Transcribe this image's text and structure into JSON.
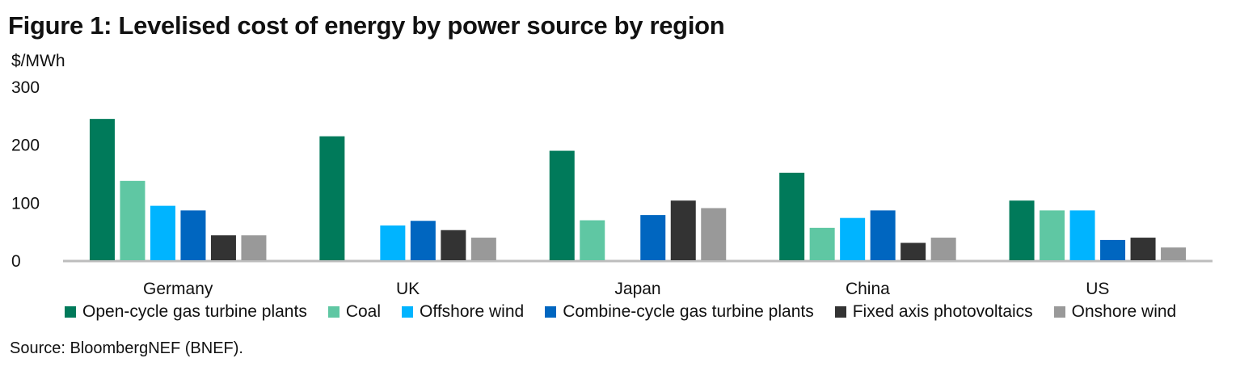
{
  "title": "Figure 1: Levelised cost of energy by power source by region",
  "unit_label": "$/MWh",
  "source": "Source: BloombergNEF (BNEF).",
  "chart_data": {
    "type": "bar",
    "title": "Figure 1: Levelised cost of energy by power source by region",
    "ylabel": "$/MWh",
    "xlabel": "",
    "ylim": [
      0,
      300
    ],
    "yticks": [
      0,
      100,
      200,
      300
    ],
    "grid": false,
    "legend_position": "bottom",
    "categories": [
      "Germany",
      "UK",
      "Japan",
      "China",
      "US"
    ],
    "series": [
      {
        "name": "Open-cycle gas turbine plants",
        "color": "#007a5a",
        "values": [
          244,
          214,
          189,
          151,
          103
        ]
      },
      {
        "name": "Coal",
        "color": "#5fc7a3",
        "values": [
          137,
          null,
          69,
          56,
          86
        ]
      },
      {
        "name": "Offshore wind",
        "color": "#00b4ff",
        "values": [
          94,
          60,
          0,
          73,
          86
        ]
      },
      {
        "name": "Combine-cycle gas turbine plants",
        "color": "#0066c0",
        "values": [
          86,
          68,
          78,
          86,
          35
        ]
      },
      {
        "name": "Fixed axis photovoltaics",
        "color": "#333333",
        "values": [
          43,
          52,
          103,
          30,
          39
        ]
      },
      {
        "name": "Onshore wind",
        "color": "#999999",
        "values": [
          43,
          39,
          90,
          39,
          22
        ]
      }
    ]
  }
}
